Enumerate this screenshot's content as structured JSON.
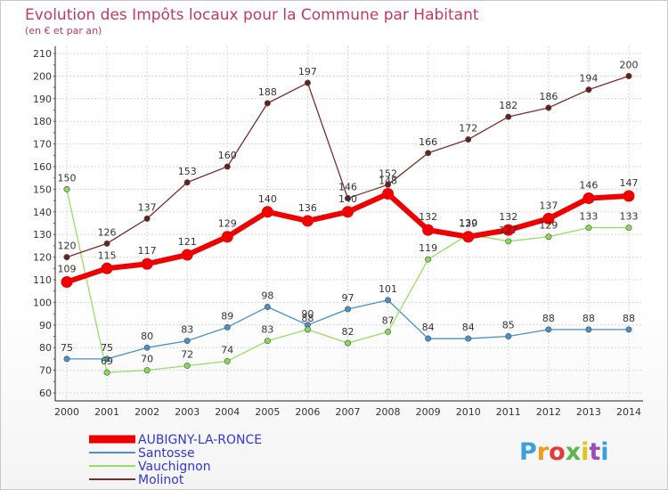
{
  "chart_data": {
    "type": "line",
    "title": "Evolution des Impôts locaux pour la Commune par Habitant",
    "subtitle": "(en € et par an)",
    "xlabel": "",
    "ylabel": "",
    "categories": [
      "2000",
      "2001",
      "2002",
      "2003",
      "2004",
      "2005",
      "2006",
      "2007",
      "2008",
      "2009",
      "2010",
      "2011",
      "2012",
      "2013",
      "2014"
    ],
    "ylim": [
      60,
      210
    ],
    "yticks": [
      60,
      70,
      80,
      90,
      100,
      110,
      120,
      130,
      140,
      150,
      160,
      170,
      180,
      190,
      200,
      210
    ],
    "grid": true,
    "legend_position": "bottom-left",
    "series": [
      {
        "name": "AUBIGNY-LA-RONCE",
        "color": "#ee0000",
        "values": [
          109,
          115,
          117,
          121,
          129,
          140,
          136,
          140,
          148,
          132,
          129,
          132,
          137,
          146,
          147
        ]
      },
      {
        "name": "Santosse",
        "color": "#4a8fc8",
        "values": [
          75,
          75,
          80,
          83,
          89,
          98,
          90,
          97,
          101,
          84,
          84,
          85,
          88,
          88,
          88
        ]
      },
      {
        "name": "Vauchignon",
        "color": "#99dd66",
        "values": [
          150,
          69,
          70,
          72,
          74,
          83,
          88,
          82,
          87,
          119,
          130,
          127,
          129,
          133,
          133
        ]
      },
      {
        "name": "Molinot",
        "color": "#7a2e2e",
        "values": [
          120,
          126,
          137,
          153,
          160,
          188,
          197,
          146,
          152,
          166,
          172,
          182,
          186,
          194,
          200
        ]
      }
    ]
  },
  "branding": {
    "logo_text": "Proxiti",
    "logo_colors": [
      "#3aa0df",
      "#f29a1c",
      "#e43a3a",
      "#58b947",
      "#e2c21b",
      "#9a4fb5",
      "#3aa0df"
    ]
  }
}
